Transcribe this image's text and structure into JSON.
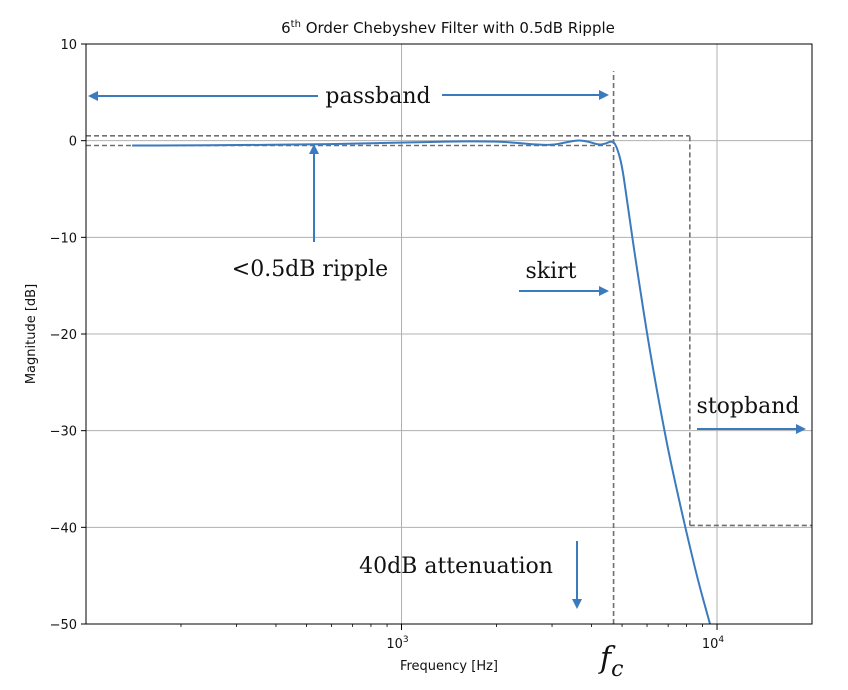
{
  "chart_data": {
    "type": "line",
    "title": "6th Order Chebyshev Filter with 0.5dB Ripple",
    "title_base": "6",
    "title_sup": "th",
    "title_rest": " Order Chebyshev Filter with 0.5dB Ripple",
    "xlabel": "Frequency [Hz]",
    "ylabel": "Magnitude [dB]",
    "x_scale": "log",
    "xlim": [
      100,
      20000
    ],
    "ylim": [
      -50,
      10
    ],
    "grid": true,
    "x_ticks": [
      {
        "value": 1000,
        "base": "10",
        "exp": "3"
      },
      {
        "value": 10000,
        "base": "10",
        "exp": "4"
      }
    ],
    "y_ticks": [
      {
        "value": 10,
        "label": "10"
      },
      {
        "value": 0,
        "label": "0"
      },
      {
        "value": -10,
        "label": "−10"
      },
      {
        "value": -20,
        "label": "−20"
      },
      {
        "value": -30,
        "label": "−30"
      },
      {
        "value": -40,
        "label": "−40"
      },
      {
        "value": -50,
        "label": "−50"
      }
    ],
    "series": [
      {
        "color": "#3a7abf",
        "x": [
          140,
          200,
          300,
          500,
          700,
          1000,
          1400,
          1800,
          2200,
          2600,
          3000,
          3300,
          3600,
          3900,
          4200,
          4450,
          4650,
          4800,
          5000,
          5200,
          5500,
          6000,
          6500,
          7000,
          7500,
          8000,
          8700,
          9500
        ],
        "y": [
          -0.5,
          -0.5,
          -0.45,
          -0.4,
          -0.3,
          -0.2,
          -0.1,
          -0.05,
          -0.15,
          -0.4,
          -0.45,
          -0.2,
          0.05,
          -0.05,
          -0.45,
          -0.3,
          0.0,
          -0.5,
          -2.5,
          -6.5,
          -12,
          -20,
          -26.5,
          -32,
          -36.5,
          -40.5,
          -45.5,
          -50
        ]
      }
    ],
    "guides": [
      {
        "kind": "passband-top",
        "y": 0.5,
        "x_from": 100,
        "x_to": 8200
      },
      {
        "kind": "passband-bottom",
        "y": -0.5,
        "x_from": 100,
        "x_to": 4700
      },
      {
        "kind": "cutoff-vertical",
        "x": 4700,
        "y_from": -50,
        "y_to": 7.2
      },
      {
        "kind": "stopband-vertical",
        "x": 8200,
        "y_from": -39.8,
        "y_to": 0.5
      },
      {
        "kind": "stopband-horizontal",
        "y": -39.8,
        "x_from": 8200,
        "x_to": 20000
      }
    ],
    "annotations": [
      {
        "text": "passband"
      },
      {
        "text": "<0.5dB ripple"
      },
      {
        "text": "skirt"
      },
      {
        "text": "stopband"
      },
      {
        "text": "40dB attenuation"
      },
      {
        "text": "fc",
        "base": "f",
        "sub": "c"
      }
    ]
  }
}
